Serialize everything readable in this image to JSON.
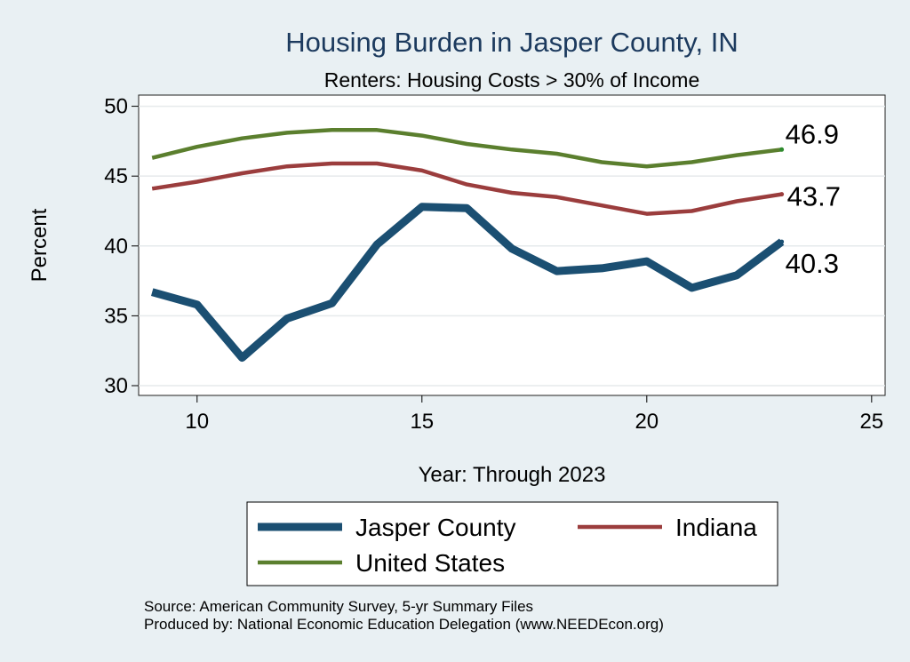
{
  "chart_data": {
    "type": "line",
    "title": "Housing Burden in Jasper County, IN",
    "subtitle": "Renters: Housing Costs > 30% of Income",
    "xlabel": "Year: Through 2023",
    "ylabel": "Percent",
    "xlim": [
      8.7,
      25.3
    ],
    "ylim": [
      29.3,
      50.8
    ],
    "xticks": [
      10,
      15,
      20,
      25
    ],
    "yticks": [
      30,
      35,
      40,
      45,
      50
    ],
    "grid": true,
    "legend_position": "bottom",
    "x": [
      9,
      10,
      11,
      12,
      13,
      14,
      15,
      16,
      17,
      18,
      19,
      20,
      21,
      22,
      23
    ],
    "series": [
      {
        "name": "Jasper County",
        "color": "#1b4f72",
        "values": [
          36.7,
          35.8,
          32.0,
          34.8,
          35.9,
          40.1,
          42.8,
          42.7,
          39.8,
          38.2,
          38.4,
          38.9,
          37.0,
          37.9,
          40.3
        ],
        "end_label": "40.3"
      },
      {
        "name": "Indiana",
        "color": "#9b3d3d",
        "values": [
          44.1,
          44.6,
          45.2,
          45.7,
          45.9,
          45.9,
          45.4,
          44.4,
          43.8,
          43.5,
          42.9,
          42.3,
          42.5,
          43.2,
          43.7
        ],
        "end_label": "43.7"
      },
      {
        "name": "United States",
        "color": "#5b7f2e",
        "values": [
          46.3,
          47.1,
          47.7,
          48.1,
          48.3,
          48.3,
          47.9,
          47.3,
          46.9,
          46.6,
          46.0,
          45.7,
          46.0,
          46.5,
          46.9
        ],
        "end_label": "46.9"
      }
    ]
  },
  "footer": {
    "source": "Source: American Community Survey, 5-yr Summary Files",
    "produced_by": "Produced by: National Economic Education Delegation (www.NEEDEcon.org)"
  }
}
